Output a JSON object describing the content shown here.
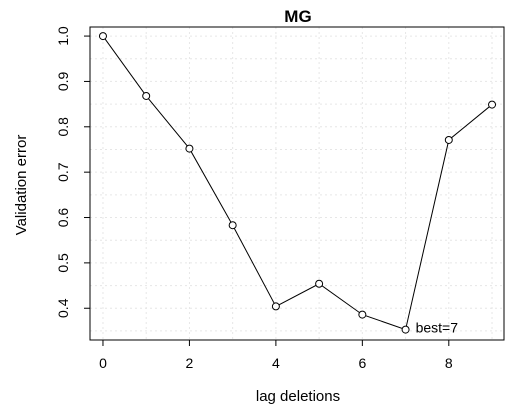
{
  "chart_data": {
    "type": "line",
    "title": "MG",
    "xlabel": "lag deletions",
    "ylabel": "Validation error",
    "x": [
      0,
      1,
      2,
      3,
      4,
      5,
      6,
      7,
      8,
      9
    ],
    "series": [
      {
        "values": [
          1.0,
          0.868,
          0.752,
          0.583,
          0.404,
          0.454,
          0.386,
          0.353,
          0.771,
          0.849
        ]
      }
    ],
    "xlim": [
      -0.3,
      9.3
    ],
    "ylim": [
      0.33,
      1.02
    ],
    "xticks": [
      0,
      2,
      4,
      6,
      8
    ],
    "yticks": [
      0.4,
      0.5,
      0.6,
      0.7,
      0.8,
      0.9,
      1.0
    ],
    "ytick_labels": [
      "0.4",
      "0.5",
      "0.6",
      "0.7",
      "0.8",
      "0.9",
      "1.0"
    ],
    "grid": true,
    "annotations": [
      {
        "text": "best=7",
        "x": 7,
        "y": 0.353
      }
    ]
  }
}
